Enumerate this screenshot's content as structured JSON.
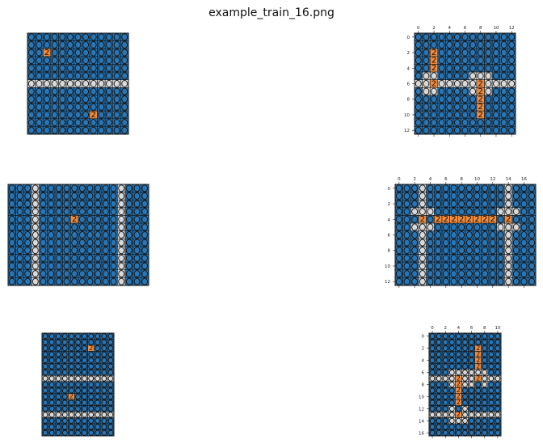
{
  "title": "example_train_16.png",
  "colors": {
    "background": "#2a75b3",
    "line": "#d9d9d9",
    "marker": "#f28b3c",
    "cell_border": "#111111"
  },
  "panels": [
    {
      "id": "train-1-input",
      "rows": 13,
      "cols": 13,
      "axes": false,
      "lines": {
        "rows": [
          6
        ],
        "cols": []
      },
      "markers": [
        [
          2,
          2
        ],
        [
          10,
          8
        ]
      ]
    },
    {
      "id": "train-1-output",
      "rows": 13,
      "cols": 13,
      "axes": true,
      "x_ticks": [
        "0",
        "2",
        "4",
        "6",
        "8",
        "10",
        "12"
      ],
      "y_ticks": [
        "0",
        "2",
        "4",
        "6",
        "8",
        "10",
        "12"
      ],
      "lines": {
        "rows": [
          6
        ],
        "cols": []
      },
      "light_cells": [
        [
          5,
          1
        ],
        [
          5,
          2
        ],
        [
          7,
          1
        ],
        [
          7,
          2
        ],
        [
          5,
          7
        ],
        [
          5,
          8
        ],
        [
          5,
          9
        ],
        [
          7,
          7
        ],
        [
          7,
          9
        ]
      ],
      "markers": [
        [
          2,
          2
        ],
        [
          3,
          2
        ],
        [
          4,
          2
        ],
        [
          6,
          2
        ],
        [
          6,
          8
        ],
        [
          7,
          8
        ],
        [
          8,
          8
        ],
        [
          9,
          8
        ],
        [
          10,
          8
        ]
      ]
    },
    {
      "id": "train-2-input",
      "rows": 13,
      "cols": 18,
      "axes": false,
      "lines": {
        "rows": [],
        "cols": [
          3,
          14
        ]
      },
      "markers": [
        [
          4,
          8
        ]
      ]
    },
    {
      "id": "train-2-output",
      "rows": 13,
      "cols": 18,
      "axes": true,
      "x_ticks": [
        "0",
        "2",
        "4",
        "6",
        "8",
        "10",
        "12",
        "14",
        "16"
      ],
      "y_ticks": [
        "0",
        "2",
        "4",
        "6",
        "8",
        "10",
        "12"
      ],
      "lines": {
        "rows": [],
        "cols": [
          3,
          14
        ]
      },
      "light_cells": [
        [
          3,
          2
        ],
        [
          3,
          4
        ],
        [
          5,
          2
        ],
        [
          5,
          4
        ],
        [
          3,
          13
        ],
        [
          3,
          15
        ],
        [
          5,
          13
        ],
        [
          5,
          15
        ]
      ],
      "markers": [
        [
          4,
          3
        ],
        [
          4,
          5
        ],
        [
          4,
          6
        ],
        [
          4,
          7
        ],
        [
          4,
          8
        ],
        [
          4,
          9
        ],
        [
          4,
          10
        ],
        [
          4,
          11
        ],
        [
          4,
          12
        ],
        [
          4,
          14
        ]
      ]
    },
    {
      "id": "train-3-input",
      "rows": 17,
      "cols": 11,
      "axes": false,
      "lines": {
        "rows": [
          7,
          13
        ],
        "cols": []
      },
      "markers": [
        [
          2,
          7
        ],
        [
          10,
          4
        ]
      ]
    },
    {
      "id": "train-3-output",
      "rows": 17,
      "cols": 11,
      "axes": true,
      "x_ticks": [
        "0",
        "2",
        "4",
        "6",
        "8",
        "10"
      ],
      "y_ticks": [
        "0",
        "2",
        "4",
        "6",
        "8",
        "10",
        "12",
        "14",
        "16"
      ],
      "lines": {
        "rows": [
          7,
          13
        ],
        "cols": []
      },
      "light_cells": [
        [
          6,
          3
        ],
        [
          6,
          4
        ],
        [
          6,
          5
        ],
        [
          8,
          3
        ],
        [
          8,
          5
        ],
        [
          6,
          6
        ],
        [
          6,
          7
        ],
        [
          6,
          8
        ],
        [
          8,
          6
        ],
        [
          8,
          8
        ],
        [
          12,
          3
        ],
        [
          12,
          5
        ],
        [
          14,
          3
        ],
        [
          14,
          4
        ],
        [
          14,
          5
        ]
      ],
      "markers": [
        [
          2,
          7
        ],
        [
          3,
          7
        ],
        [
          4,
          7
        ],
        [
          5,
          7
        ],
        [
          7,
          7
        ],
        [
          7,
          4
        ],
        [
          8,
          4
        ],
        [
          9,
          4
        ],
        [
          10,
          4
        ],
        [
          11,
          4
        ],
        [
          13,
          4
        ]
      ]
    }
  ],
  "marker_label": "2"
}
